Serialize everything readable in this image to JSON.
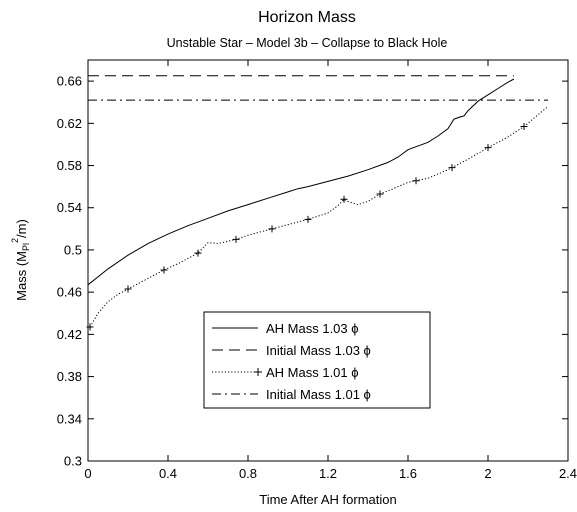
{
  "chart_data": {
    "type": "line",
    "title": "Horizon Mass",
    "subtitle": "Unstable Star – Model 3b – Collapse to Black Hole",
    "xlabel": "Time After AH formation",
    "ylabel": "Mass (M",
    "ylabel_sub": "Pl",
    "ylabel_sup": "2",
    "ylabel_tail": "/m)",
    "xlim": [
      0,
      2.4
    ],
    "ylim": [
      0.3,
      0.68
    ],
    "xticks": [
      0,
      0.4,
      0.8,
      1.2,
      1.6,
      2,
      2.4
    ],
    "xtick_labels": [
      "0",
      "0.4",
      "0.8",
      "1.2",
      "1.6",
      "2",
      "2.4"
    ],
    "yticks": [
      0.3,
      0.34,
      0.38,
      0.42,
      0.46,
      0.5,
      0.54,
      0.58,
      0.62,
      0.66
    ],
    "ytick_labels": [
      "0.3",
      "0.34",
      "0.38",
      "0.42",
      "0.46",
      "0.5",
      "0.54",
      "0.58",
      "0.62",
      "0.66"
    ],
    "grid": false,
    "legend_position": "lower-center",
    "series": [
      {
        "name": "AH Mass 1.03 ϕ",
        "style": "solid",
        "x": [
          0,
          0.1,
          0.2,
          0.3,
          0.4,
          0.5,
          0.6,
          0.7,
          0.8,
          0.9,
          1.0,
          1.05,
          1.1,
          1.2,
          1.3,
          1.4,
          1.5,
          1.55,
          1.6,
          1.7,
          1.75,
          1.8,
          1.83,
          1.86,
          1.88,
          1.9,
          1.95,
          2.0,
          2.05,
          2.1,
          2.13
        ],
        "y": [
          0.467,
          0.482,
          0.495,
          0.506,
          0.515,
          0.523,
          0.53,
          0.537,
          0.543,
          0.549,
          0.555,
          0.558,
          0.56,
          0.565,
          0.57,
          0.576,
          0.583,
          0.588,
          0.595,
          0.602,
          0.608,
          0.615,
          0.624,
          0.626,
          0.627,
          0.632,
          0.641,
          0.647,
          0.653,
          0.659,
          0.662
        ]
      },
      {
        "name": "Initial Mass  1.03 ϕ",
        "style": "dashed",
        "x": [
          0,
          2.13
        ],
        "y": [
          0.665,
          0.665
        ]
      },
      {
        "name": "AH Mass 1.01 ϕ",
        "style": "dotted-plus",
        "x": [
          0.01,
          0.05,
          0.1,
          0.15,
          0.2,
          0.3,
          0.38,
          0.45,
          0.55,
          0.6,
          0.65,
          0.74,
          0.8,
          0.9,
          1.0,
          1.1,
          1.2,
          1.25,
          1.28,
          1.3,
          1.35,
          1.4,
          1.46,
          1.5,
          1.55,
          1.6,
          1.7,
          1.8,
          1.9,
          2.0,
          2.1,
          2.18,
          2.3
        ],
        "y": [
          0.427,
          0.44,
          0.451,
          0.458,
          0.463,
          0.473,
          0.481,
          0.487,
          0.497,
          0.507,
          0.506,
          0.51,
          0.514,
          0.519,
          0.524,
          0.529,
          0.535,
          0.542,
          0.548,
          0.546,
          0.543,
          0.546,
          0.553,
          0.556,
          0.56,
          0.564,
          0.568,
          0.576,
          0.586,
          0.597,
          0.607,
          0.617,
          0.636
        ]
      },
      {
        "name": "Initial Mass 1.01 ϕ",
        "style": "dash-dot",
        "x": [
          0,
          2.3
        ],
        "y": [
          0.642,
          0.642
        ]
      }
    ]
  }
}
